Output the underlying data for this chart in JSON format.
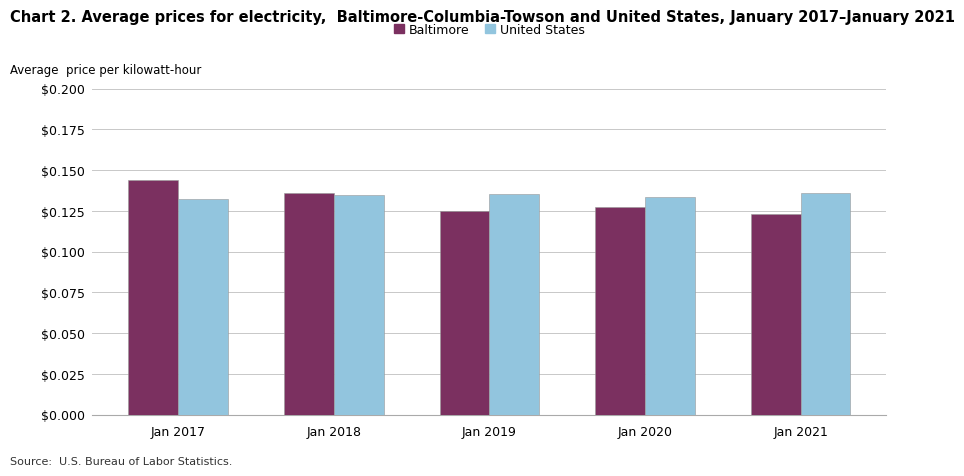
{
  "title": "Chart 2. Average prices for electricity,  Baltimore-Columbia-Towson and United States, January 2017–January 2021",
  "ylabel": "Average  price per kilowatt-hour",
  "categories": [
    "Jan 2017",
    "Jan 2018",
    "Jan 2019",
    "Jan 2020",
    "Jan 2021"
  ],
  "baltimore": [
    0.1442,
    0.136,
    0.1252,
    0.1272,
    0.1232
  ],
  "us": [
    0.1322,
    0.1348,
    0.1352,
    0.1338,
    0.1362
  ],
  "baltimore_color": "#7B3060",
  "us_color": "#92C5DE",
  "bar_edge_color": "#999999",
  "ylim": [
    0.0,
    0.2
  ],
  "yticks": [
    0.0,
    0.025,
    0.05,
    0.075,
    0.1,
    0.125,
    0.15,
    0.175,
    0.2
  ],
  "legend_labels": [
    "Baltimore",
    "United States"
  ],
  "source_text": "Source:  U.S. Bureau of Labor Statistics.",
  "title_fontsize": 10.5,
  "axis_label_fontsize": 8.5,
  "tick_fontsize": 9,
  "legend_fontsize": 9,
  "source_fontsize": 8,
  "bar_width": 0.32,
  "background_color": "#ffffff",
  "grid_color": "#c8c8c8"
}
